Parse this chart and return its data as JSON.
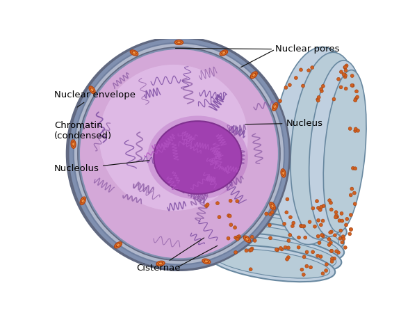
{
  "bg_color": "#ffffff",
  "labels": {
    "nuclear_envelope": "Nuclear envelope",
    "chromatin": "Chromatin\n(condensed)",
    "nucleolus": "Nucleolus",
    "nuclear_pores": "Nuclear pores",
    "nucleus": "Nucleus",
    "cisternae": "Cisternae"
  },
  "colors": {
    "nucleus_fill": "#d4a8d8",
    "nucleus_fill2": "#c090c8",
    "nucleus_light": "#e8c8f0",
    "nucleolus_fill": "#a040b0",
    "nucleolus_dark": "#803090",
    "nucleolus_fiber": "#b050c0",
    "envelope_gray": "#9098b8",
    "envelope_blue": "#8090b0",
    "envelope_line1": "#606880",
    "envelope_line2": "#7080a0",
    "er_fill": "#aabccc",
    "er_light": "#c0d0e0",
    "er_edge": "#7090a8",
    "pore_orange": "#e07828",
    "pore_dark": "#b04010",
    "pore_inner": "#f09848",
    "ribosome_fill": "#d06020",
    "ribosome_edge": "#a04010",
    "ribosome_small": "#e07030",
    "chromatin_purple": "#9060a8",
    "chromatin_dark": "#7848a0",
    "gray_dot_region": "#a8a8c0",
    "cisternae_fill": "#b8ccd8",
    "cisternae_edge": "#6888a0"
  }
}
